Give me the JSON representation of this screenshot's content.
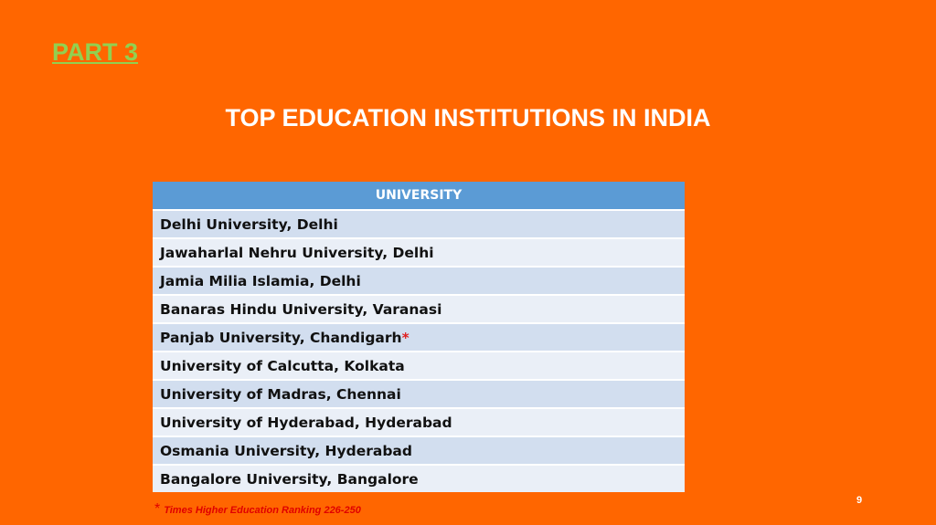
{
  "header": {
    "section": "PART 3",
    "title": "TOP EDUCATION INSTITUTIONS IN INDIA"
  },
  "table": {
    "header": "UNIVERSITY",
    "rows": [
      "Delhi University, Delhi",
      "Jawaharlal Nehru University, Delhi",
      "Jamia Milia Islamia, Delhi",
      "Banaras Hindu University, Varanasi",
      {
        "text": "Panjab University, Chandigarh",
        "marker": "*"
      },
      "University of Calcutta, Kolkata",
      "University of Madras, Chennai",
      "University of Hyderabad, Hyderabad",
      "Osmania University, Hyderabad",
      "Bangalore University, Bangalore"
    ]
  },
  "footnote": {
    "marker": "*",
    "text": "Times Higher Education Ranking 226-250"
  },
  "page_number": 9
}
